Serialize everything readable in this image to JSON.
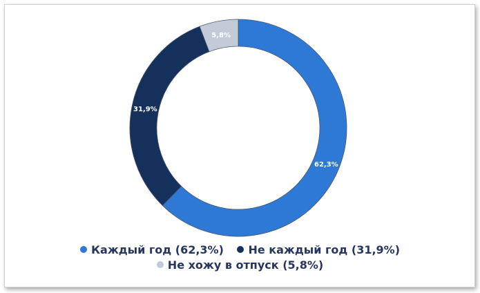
{
  "chart_data": {
    "type": "pie",
    "donut": true,
    "series": [
      {
        "name": "Каждый год",
        "value": 62.3,
        "label": "62,3%",
        "legend": "Каждый год (62,3%)",
        "color": "#2e78d6"
      },
      {
        "name": "Не каждый год",
        "value": 31.9,
        "label": "31,9%",
        "legend": "Не каждый год (31,9%)",
        "color": "#15305a"
      },
      {
        "name": "Не хожу в отпуск",
        "value": 5.8,
        "label": "5,8%",
        "legend": "Не хожу в отпуск (5,8%)",
        "color": "#c3cbd9"
      }
    ],
    "legend_position": "bottom"
  }
}
